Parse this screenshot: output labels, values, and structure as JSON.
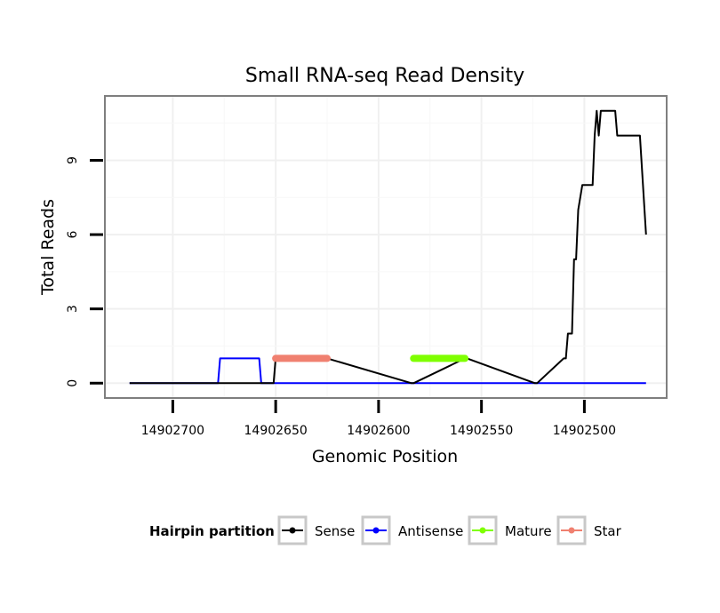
{
  "chart_data": {
    "type": "line",
    "title": "Small RNA-seq Read Density",
    "xlabel": "Genomic Position",
    "ylabel": "Total Reads",
    "x_reversed": true,
    "xlim": [
      14902733,
      14902460
    ],
    "ylim": [
      -0.6,
      11.6
    ],
    "x_ticks": [
      14902700,
      14902650,
      14902600,
      14902550,
      14902500
    ],
    "x_tick_labels": [
      "14902700",
      "14902650",
      "14902600",
      "14902550",
      "14902500"
    ],
    "y_ticks": [
      0,
      3,
      6,
      9
    ],
    "y_tick_labels": [
      "0",
      "3",
      "6",
      "9"
    ],
    "grid": true,
    "legend": {
      "title": "Hairpin partition",
      "position": "bottom",
      "entries": [
        {
          "label": "Sense",
          "color": "#000000"
        },
        {
          "label": "Antisense",
          "color": "#0000ff"
        },
        {
          "label": "Mature",
          "color": "#7fff00"
        },
        {
          "label": "Star",
          "color": "#f08070"
        }
      ]
    },
    "series": [
      {
        "name": "Sense",
        "color": "#000000",
        "x": [
          14902721,
          14902651,
          14902650,
          14902625,
          14902584,
          14902583,
          14902558,
          14902557,
          14902524,
          14902523,
          14902510,
          14902509,
          14902508,
          14902506,
          14902505,
          14902504,
          14902503,
          14902501,
          14902496,
          14902495,
          14902494,
          14902493,
          14902492,
          14902490,
          14902485,
          14902484,
          14902478,
          14902477,
          14902473,
          14902470
        ],
        "y": [
          0,
          0,
          1,
          1,
          0,
          0,
          1,
          1,
          0,
          0,
          1,
          1,
          2,
          2,
          5,
          5,
          7,
          8,
          8,
          10,
          11,
          10,
          11,
          11,
          11,
          10,
          10,
          10,
          10,
          6
        ]
      },
      {
        "name": "Antisense",
        "color": "#0000ff",
        "x": [
          14902721,
          14902678,
          14902677,
          14902658,
          14902657,
          14902470
        ],
        "y": [
          0,
          0,
          1,
          1,
          0,
          0
        ]
      },
      {
        "name": "Mature",
        "color": "#7fff00",
        "x": [
          14902583,
          14902558
        ],
        "y": [
          1,
          1
        ]
      },
      {
        "name": "Star",
        "color": "#f08070",
        "x": [
          14902650,
          14902625
        ],
        "y": [
          1,
          1
        ]
      }
    ]
  }
}
